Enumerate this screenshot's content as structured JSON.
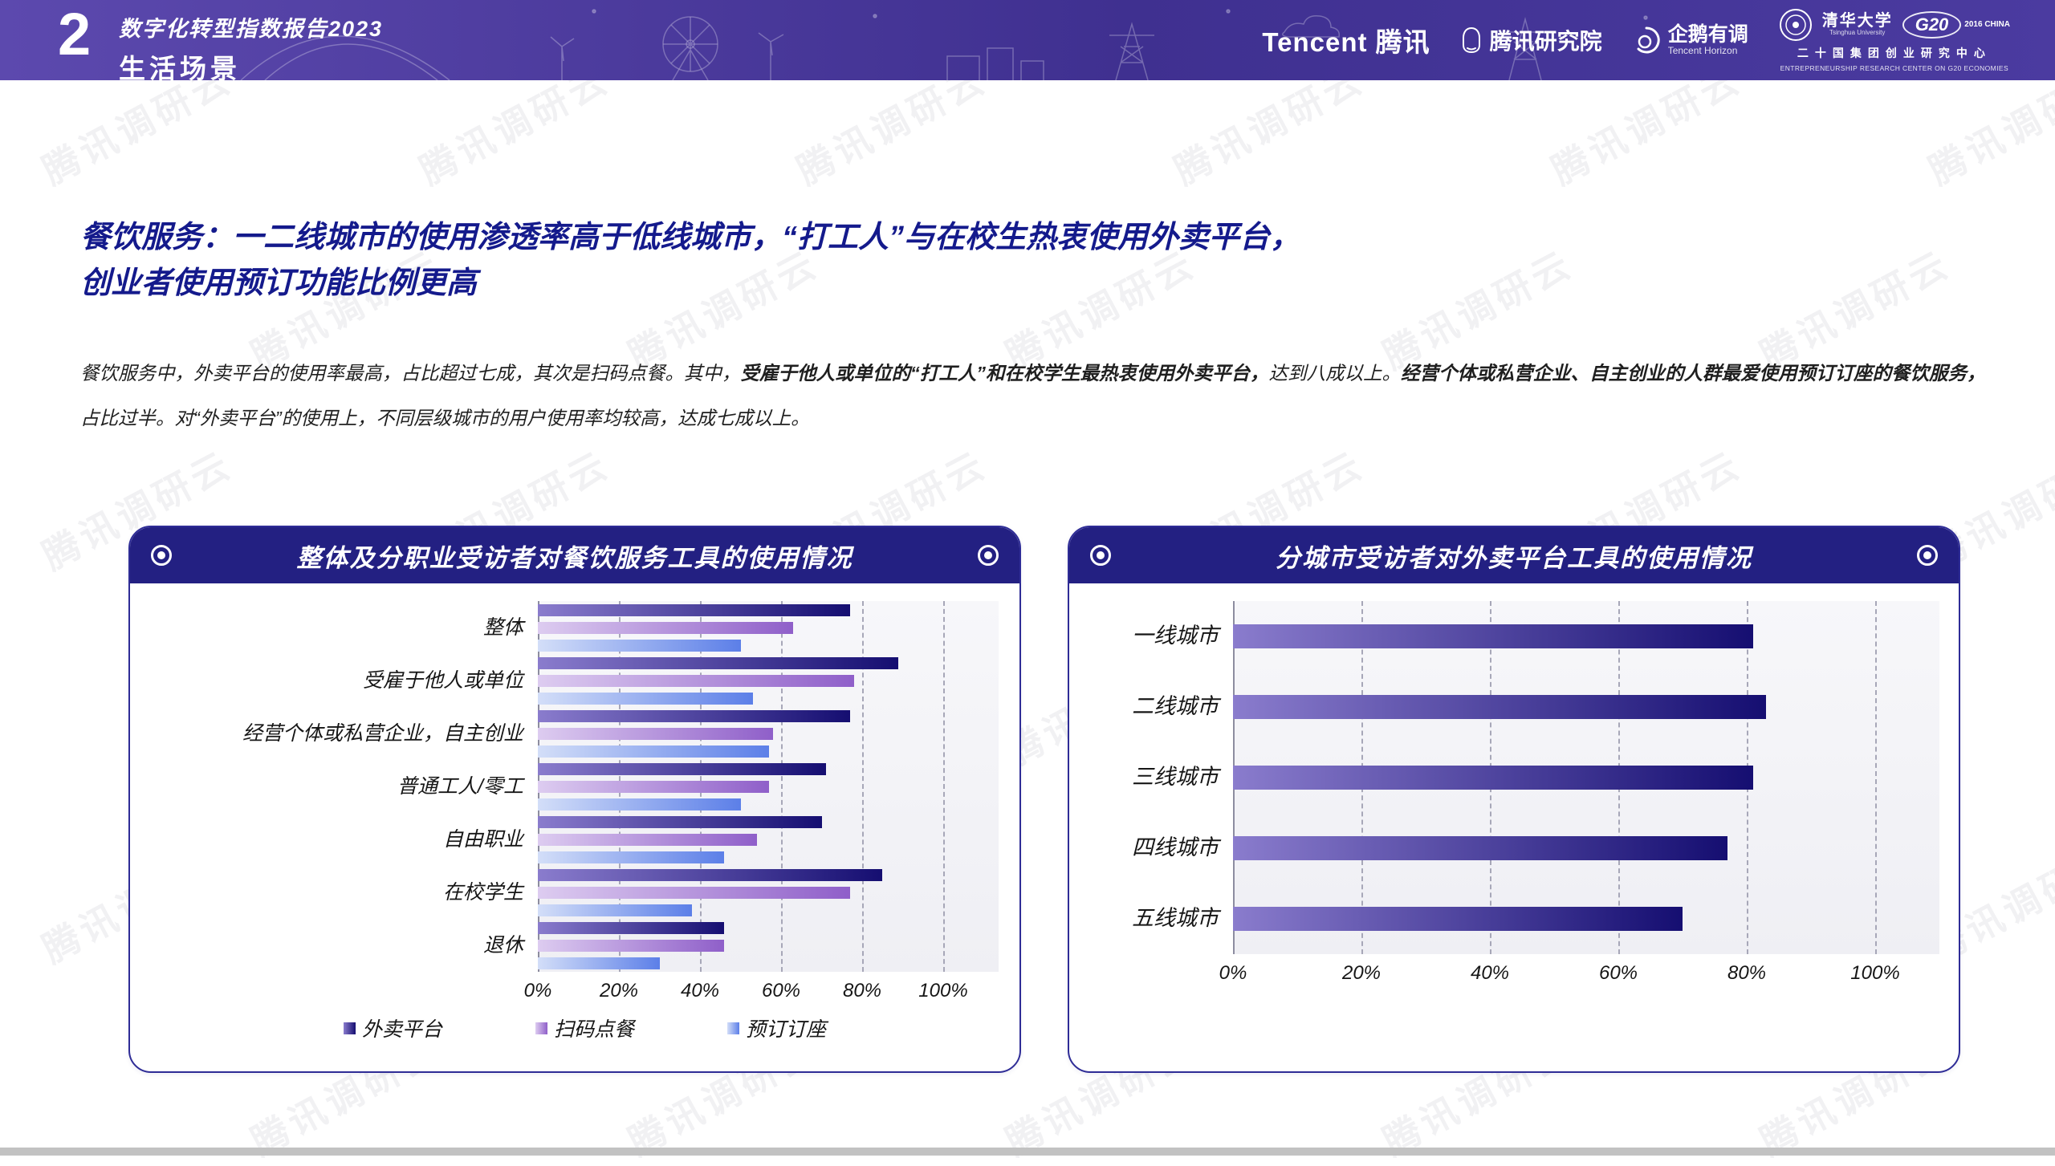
{
  "header": {
    "chapter_number": "2",
    "report_title": "数字化转型指数报告2023",
    "section_title": "生活场景",
    "logos": {
      "tencent": "Tencent 腾讯",
      "research": "腾讯研究院",
      "horizon_cn": "企鹅有调",
      "horizon_en": "Tencent Horizon",
      "tsinghua_cn": "清华大学",
      "tsinghua_en": "Tsinghua University",
      "g20": "G20",
      "g20_sub": "2016 CHINA",
      "center_cn": "二十国集团创业研究中心",
      "center_en": "ENTREPRENEURSHIP RESEARCH CENTER ON G20 ECONOMIES"
    }
  },
  "watermark_text": "腾讯调研云",
  "headline": {
    "line1": "餐饮服务：一二线城市的使用渗透率高于低线城市，“打工人”与在校生热衷使用外卖平台，",
    "line2": "创业者使用预订功能比例更高"
  },
  "paragraph": {
    "seg1": "餐饮服务中，外卖平台的使用率最高，占比超过七成，其次是扫码点餐。其中，",
    "seg2_bold": "受雇于他人或单位的“打工人”和在校学生最热衷使用外卖平台，",
    "seg3": "达到八成以上。",
    "seg4_bold": "经营个体或私营企业、自主创业的人群最爱使用预订订座的餐饮服务，",
    "seg5": "占比过半。对“外卖平台”的使用上，不同层级城市的用户使用率均较高，达成七成以上。"
  },
  "chart_data": [
    {
      "type": "bar",
      "orientation": "horizontal",
      "title": "整体及分职业受访者对餐饮服务工具的使用情况",
      "categories": [
        "整体",
        "受雇于他人或单位",
        "经营个体或私营企业，自主创业",
        "普通工人/零工",
        "自由职业",
        "在校学生",
        "退休"
      ],
      "series": [
        {
          "name": "外卖平台",
          "values": [
            77,
            89,
            77,
            71,
            70,
            85,
            46
          ],
          "color_from": "#8a7ccd",
          "color_to": "#150e71"
        },
        {
          "name": "扫码点餐",
          "values": [
            63,
            78,
            58,
            57,
            54,
            77,
            46
          ],
          "color_from": "#ddccf0",
          "color_to": "#8f5fc9"
        },
        {
          "name": "预订订座",
          "values": [
            50,
            53,
            57,
            50,
            46,
            38,
            30
          ],
          "color_from": "#d3def8",
          "color_to": "#5c7fe8"
        }
      ],
      "xlim": [
        0,
        100
      ],
      "ticks": [
        "0%",
        "20%",
        "40%",
        "60%",
        "80%",
        "100%"
      ],
      "grid": "dashed-vertical",
      "legend_position": "bottom"
    },
    {
      "type": "bar",
      "orientation": "horizontal",
      "title": "分城市受访者对外卖平台工具的使用情况",
      "categories": [
        "一线城市",
        "二线城市",
        "三线城市",
        "四线城市",
        "五线城市"
      ],
      "series": [
        {
          "name": "外卖平台",
          "values": [
            81,
            83,
            81,
            77,
            70
          ],
          "color_from": "#8a7ccd",
          "color_to": "#150e71"
        }
      ],
      "xlim": [
        0,
        100
      ],
      "ticks": [
        "0%",
        "20%",
        "40%",
        "60%",
        "80%",
        "100%"
      ],
      "grid": "dashed-vertical",
      "legend_position": "none"
    }
  ]
}
